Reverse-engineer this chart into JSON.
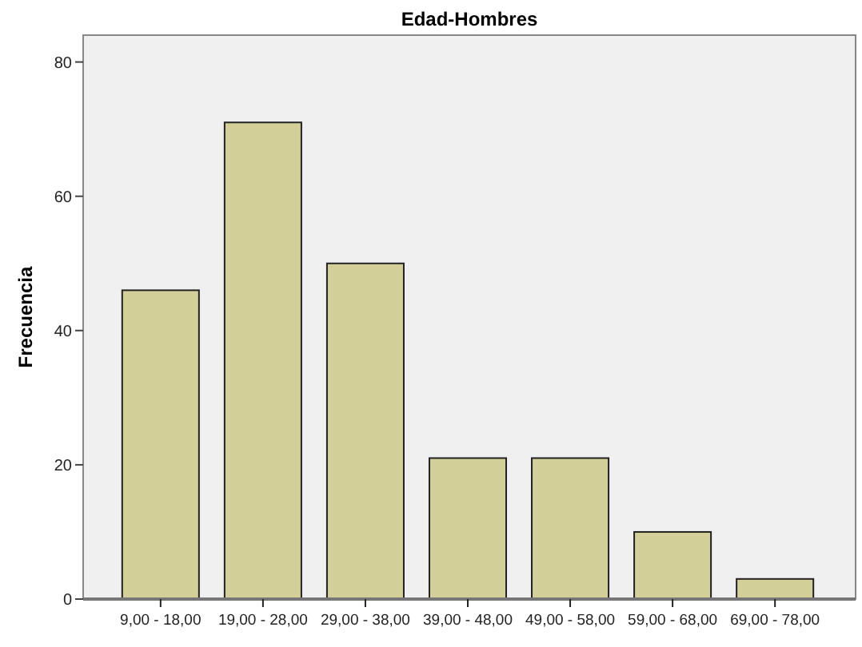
{
  "chart_data": {
    "type": "bar",
    "title": "Edad-Hombres",
    "ylabel": "Frecuencia",
    "categories": [
      "9,00 - 18,00",
      "19,00 - 28,00",
      "29,00 - 38,00",
      "39,00 - 48,00",
      "49,00 - 58,00",
      "59,00 - 68,00",
      "69,00 - 78,00"
    ],
    "values": [
      46,
      71,
      50,
      21,
      21,
      10,
      3
    ],
    "color": "#d3cf98",
    "ylim": [
      0,
      84
    ],
    "yticks": [
      0,
      20,
      40,
      60,
      80
    ],
    "grid": false
  }
}
